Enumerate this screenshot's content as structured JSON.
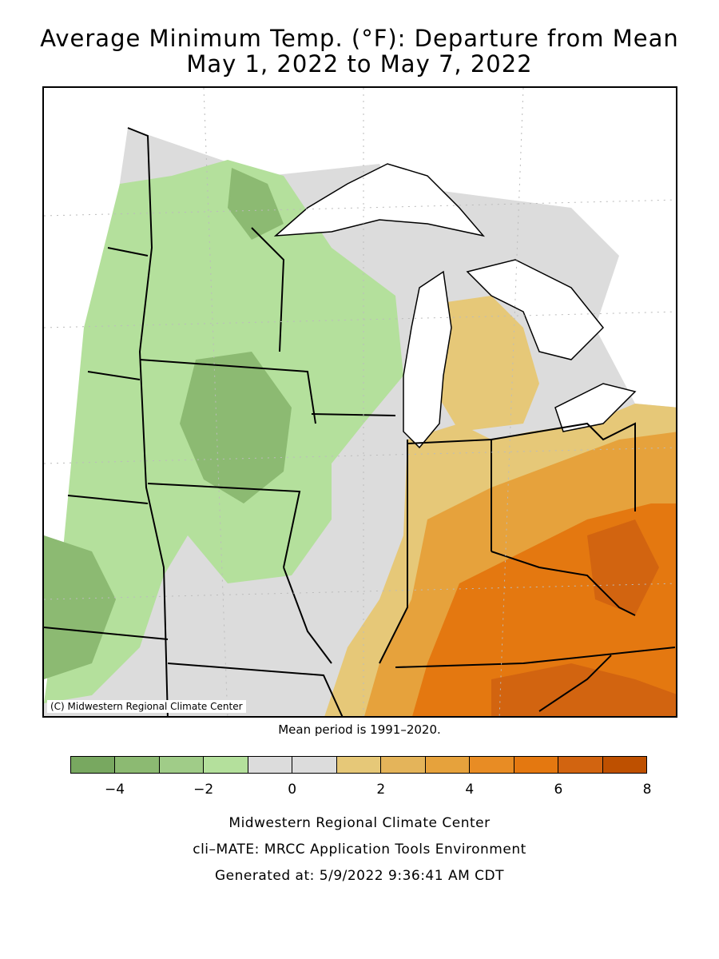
{
  "title_line1": "Average Minimum Temp. (°F): Departure from Mean",
  "title_line2": "May 1, 2022 to May 7, 2022",
  "copyright": "(C) Midwestern Regional Climate Center",
  "mean_period": "Mean period is 1991–2020.",
  "legend": {
    "colors": [
      "#78a860",
      "#8cba72",
      "#a0cc88",
      "#b4e09c",
      "#dcdcdc",
      "#dcdcdc",
      "#e6c878",
      "#e4b45a",
      "#e6a23c",
      "#e88c24",
      "#e47810",
      "#d26410",
      "#be5000"
    ],
    "ticks": [
      {
        "label": "−4",
        "value": -4
      },
      {
        "label": "−2",
        "value": -2
      },
      {
        "label": "0",
        "value": 0
      },
      {
        "label": "2",
        "value": 2
      },
      {
        "label": "4",
        "value": 4
      },
      {
        "label": "6",
        "value": 6
      },
      {
        "label": "8",
        "value": 8
      }
    ],
    "min": -5,
    "max": 8
  },
  "footer_line1": "Midwestern Regional Climate Center",
  "footer_line2": "cli–MATE: MRCC Application Tools Environment",
  "footer_line3": "Generated at: 5/9/2022 9:36:41 AM CDT"
}
